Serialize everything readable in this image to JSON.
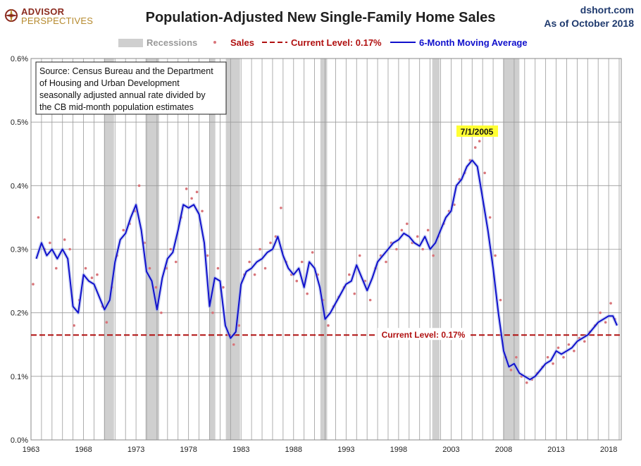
{
  "header": {
    "logo_line1": "ADVISOR",
    "logo_line2": "PERSPECTIVES",
    "title": "Population-Adjusted New Single-Family Home Sales",
    "site": "dshort.com",
    "as_of": "As of October 2018"
  },
  "colors": {
    "sales_dots": "#d9757a",
    "moving_average": "#1010cc",
    "current_level": "#b01010",
    "recession": "#cfcfcf",
    "grid": "#9a9a9a",
    "annotation_bg": "#ffff33"
  },
  "chart_data": {
    "type": "line",
    "title": "Population-Adjusted New Single-Family Home Sales",
    "xlabel": "",
    "ylabel": "",
    "xlim": [
      1963,
      2019.2
    ],
    "ylim": [
      0,
      0.6
    ],
    "y_ticks": [
      0,
      0.1,
      0.2,
      0.3,
      0.4,
      0.5,
      0.6
    ],
    "y_tick_labels": [
      "0.0%",
      "0.1%",
      "0.2%",
      "0.3%",
      "0.4%",
      "0.5%",
      "0.6%"
    ],
    "x_ticks": [
      1963,
      1968,
      1973,
      1978,
      1983,
      1988,
      1993,
      1998,
      2003,
      2008,
      2013,
      2018
    ],
    "x_tick_labels": [
      "1963",
      "1968",
      "1973",
      "1978",
      "1983",
      "1988",
      "1993",
      "1998",
      "2003",
      "2008",
      "2013",
      "2018"
    ],
    "legend": {
      "position": "top",
      "recessions": "Recessions",
      "sales": "Sales",
      "current_level": "Current Level: 0.17%",
      "moving_average": "6-Month Moving Average"
    },
    "source_note": [
      "Source: Census Bureau and the Department",
      "of Housing and Urban Development",
      "seasonally adjusted annual rate divided by",
      "the CB mid-month population estimates"
    ],
    "current_level": {
      "value": 0.165,
      "label": "Current Level: 0.17%"
    },
    "peak_annotation": {
      "label": "7/1/2005",
      "x": 2005.5,
      "y": 0.44
    },
    "recessions": [
      [
        1969.95,
        1970.9
      ],
      [
        1973.9,
        1975.2
      ],
      [
        1980.0,
        1980.55
      ],
      [
        1981.55,
        1982.9
      ],
      [
        1990.55,
        1991.2
      ],
      [
        2001.2,
        2001.9
      ],
      [
        2007.95,
        2009.5
      ]
    ],
    "series": [
      {
        "name": "6-Month Moving Average",
        "x": [
          1963.5,
          1964.0,
          1964.5,
          1965.0,
          1965.5,
          1966.0,
          1966.5,
          1967.0,
          1967.5,
          1968.0,
          1968.5,
          1969.0,
          1969.5,
          1970.0,
          1970.5,
          1971.0,
          1971.5,
          1972.0,
          1972.5,
          1973.0,
          1973.5,
          1974.0,
          1974.5,
          1975.0,
          1975.5,
          1976.0,
          1976.5,
          1977.0,
          1977.5,
          1978.0,
          1978.5,
          1979.0,
          1979.5,
          1980.0,
          1980.5,
          1981.0,
          1981.5,
          1982.0,
          1982.5,
          1983.0,
          1983.5,
          1984.0,
          1984.5,
          1985.0,
          1985.5,
          1986.0,
          1986.5,
          1987.0,
          1987.5,
          1988.0,
          1988.5,
          1989.0,
          1989.5,
          1990.0,
          1990.5,
          1991.0,
          1991.5,
          1992.0,
          1992.5,
          1993.0,
          1993.5,
          1994.0,
          1994.5,
          1995.0,
          1995.5,
          1996.0,
          1996.5,
          1997.0,
          1997.5,
          1998.0,
          1998.5,
          1999.0,
          1999.5,
          2000.0,
          2000.5,
          2001.0,
          2001.5,
          2002.0,
          2002.5,
          2003.0,
          2003.5,
          2004.0,
          2004.5,
          2005.0,
          2005.5,
          2006.0,
          2006.5,
          2007.0,
          2007.5,
          2008.0,
          2008.5,
          2009.0,
          2009.5,
          2010.0,
          2010.5,
          2011.0,
          2011.5,
          2012.0,
          2012.5,
          2013.0,
          2013.5,
          2014.0,
          2014.5,
          2015.0,
          2015.5,
          2016.0,
          2016.5,
          2017.0,
          2017.5,
          2018.0,
          2018.4,
          2018.8
        ],
        "values": [
          0.285,
          0.31,
          0.29,
          0.3,
          0.285,
          0.3,
          0.285,
          0.21,
          0.2,
          0.26,
          0.25,
          0.245,
          0.225,
          0.205,
          0.22,
          0.28,
          0.315,
          0.325,
          0.35,
          0.37,
          0.33,
          0.265,
          0.25,
          0.205,
          0.255,
          0.285,
          0.295,
          0.33,
          0.37,
          0.365,
          0.37,
          0.355,
          0.31,
          0.21,
          0.255,
          0.25,
          0.18,
          0.16,
          0.17,
          0.245,
          0.265,
          0.27,
          0.28,
          0.285,
          0.295,
          0.3,
          0.32,
          0.29,
          0.27,
          0.26,
          0.27,
          0.24,
          0.28,
          0.27,
          0.24,
          0.19,
          0.2,
          0.215,
          0.23,
          0.245,
          0.25,
          0.275,
          0.255,
          0.235,
          0.255,
          0.28,
          0.29,
          0.3,
          0.31,
          0.315,
          0.325,
          0.32,
          0.31,
          0.305,
          0.32,
          0.3,
          0.31,
          0.33,
          0.35,
          0.36,
          0.4,
          0.41,
          0.43,
          0.44,
          0.43,
          0.38,
          0.33,
          0.27,
          0.2,
          0.14,
          0.115,
          0.12,
          0.105,
          0.1,
          0.095,
          0.1,
          0.11,
          0.12,
          0.125,
          0.14,
          0.135,
          0.14,
          0.145,
          0.155,
          0.16,
          0.165,
          0.175,
          0.185,
          0.19,
          0.195,
          0.195,
          0.18
        ]
      },
      {
        "name": "Sales",
        "x": [
          1963.2,
          1963.7,
          1964.3,
          1964.8,
          1965.4,
          1966.2,
          1966.7,
          1967.1,
          1967.6,
          1968.2,
          1968.8,
          1969.3,
          1969.8,
          1970.2,
          1970.7,
          1971.2,
          1971.8,
          1972.4,
          1972.9,
          1973.3,
          1973.8,
          1974.3,
          1974.9,
          1975.4,
          1975.9,
          1976.3,
          1976.8,
          1977.3,
          1977.8,
          1978.3,
          1978.8,
          1979.3,
          1979.8,
          1980.3,
          1980.8,
          1981.3,
          1981.8,
          1982.3,
          1982.8,
          1983.3,
          1983.8,
          1984.3,
          1984.8,
          1985.3,
          1985.8,
          1986.3,
          1986.8,
          1987.3,
          1987.8,
          1988.3,
          1988.8,
          1989.3,
          1989.8,
          1990.3,
          1990.8,
          1991.3,
          1991.8,
          1992.3,
          1992.8,
          1993.3,
          1993.8,
          1994.3,
          1994.8,
          1995.3,
          1995.8,
          1996.3,
          1996.8,
          1997.3,
          1997.8,
          1998.3,
          1998.8,
          1999.3,
          1999.8,
          2000.3,
          2000.8,
          2001.3,
          2001.8,
          2002.3,
          2002.8,
          2003.3,
          2003.8,
          2004.3,
          2004.8,
          2005.3,
          2005.7,
          2006.2,
          2006.7,
          2007.2,
          2007.7,
          2008.2,
          2008.7,
          2009.2,
          2009.7,
          2010.2,
          2010.7,
          2011.2,
          2011.7,
          2012.2,
          2012.7,
          2013.2,
          2013.7,
          2014.2,
          2014.7,
          2015.2,
          2015.7,
          2016.2,
          2016.7,
          2017.2,
          2017.7,
          2018.2,
          2018.6
        ],
        "values": [
          0.245,
          0.35,
          0.3,
          0.31,
          0.27,
          0.315,
          0.3,
          0.18,
          0.22,
          0.27,
          0.255,
          0.26,
          0.21,
          0.185,
          0.24,
          0.29,
          0.33,
          0.34,
          0.36,
          0.4,
          0.31,
          0.27,
          0.24,
          0.2,
          0.27,
          0.3,
          0.28,
          0.35,
          0.395,
          0.38,
          0.39,
          0.36,
          0.29,
          0.2,
          0.27,
          0.24,
          0.165,
          0.15,
          0.18,
          0.26,
          0.28,
          0.26,
          0.3,
          0.27,
          0.31,
          0.32,
          0.365,
          0.28,
          0.26,
          0.25,
          0.28,
          0.23,
          0.295,
          0.26,
          0.22,
          0.18,
          0.21,
          0.225,
          0.24,
          0.26,
          0.23,
          0.29,
          0.25,
          0.22,
          0.27,
          0.29,
          0.28,
          0.31,
          0.3,
          0.33,
          0.34,
          0.31,
          0.32,
          0.3,
          0.33,
          0.29,
          0.32,
          0.34,
          0.36,
          0.37,
          0.41,
          0.42,
          0.44,
          0.46,
          0.47,
          0.42,
          0.35,
          0.29,
          0.22,
          0.13,
          0.11,
          0.13,
          0.1,
          0.09,
          0.095,
          0.105,
          0.115,
          0.13,
          0.12,
          0.145,
          0.13,
          0.15,
          0.14,
          0.16,
          0.155,
          0.17,
          0.18,
          0.2,
          0.185,
          0.215,
          0.19
        ]
      }
    ]
  }
}
